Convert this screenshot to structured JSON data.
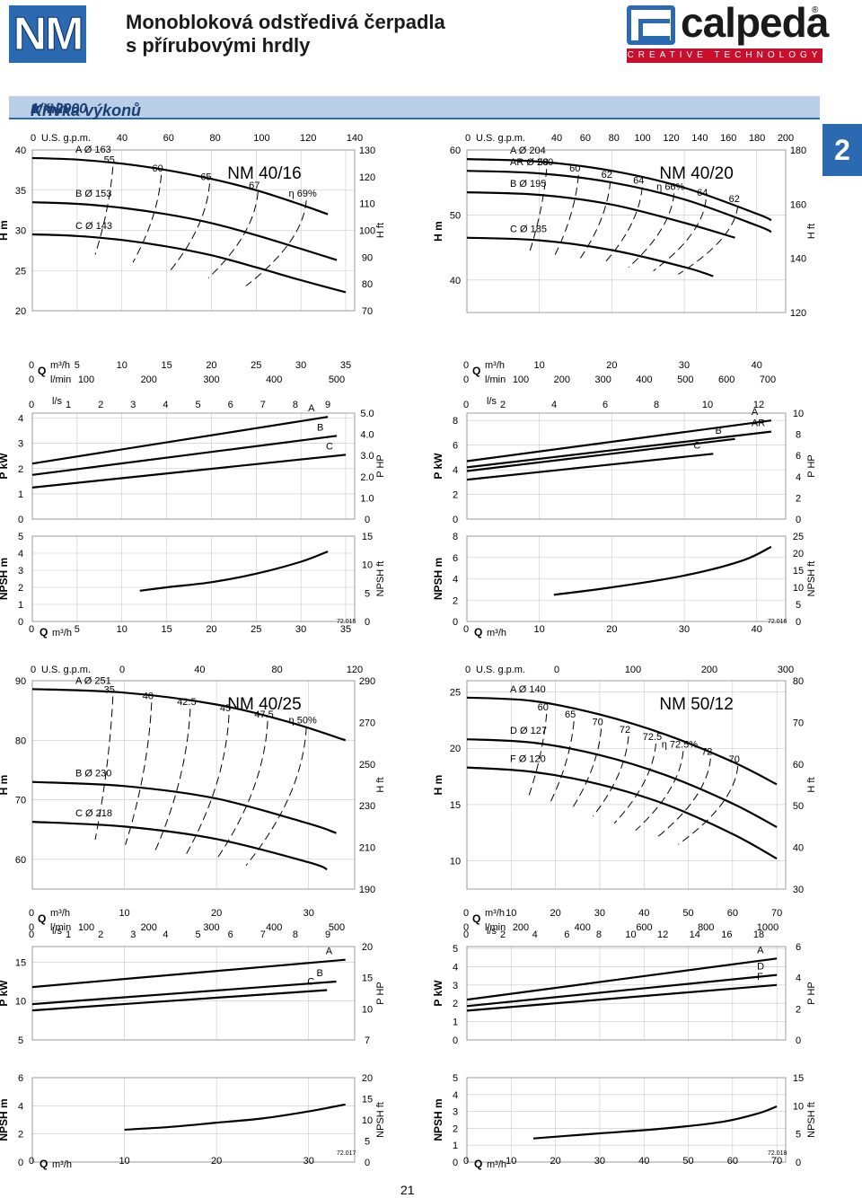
{
  "header": {
    "badge": "NM",
    "title_line1": "Monobloková odstředivá čerpadla",
    "title_line2": "s přírubovými hrdly",
    "logo_text": "calpeda",
    "logo_reg": "®",
    "logo_tagline": "CREATIVE TECHNOLOGY"
  },
  "section": {
    "title": "Křivka výkonů",
    "speed": "n ≈ 2900",
    "speed_unit": "1/min"
  },
  "side_tab": "2",
  "page_number": "21",
  "colors": {
    "brand_blue": "#2b69b0",
    "brand_red": "#c8102e",
    "section_bg": "#b9cfe7"
  },
  "chart_data": [
    {
      "type": "line",
      "title": "NM 40/16",
      "footnote": "72.015",
      "x_label": "Q m3/h",
      "flow_axes": {
        "m3h": {
          "ticks": [
            0,
            5,
            10,
            15,
            20,
            25,
            30,
            35
          ],
          "range": [
            0,
            36
          ]
        },
        "lmin": [
          0,
          100,
          200,
          300,
          400,
          500
        ],
        "ls": [
          0,
          1,
          2,
          3,
          4,
          5,
          6,
          7,
          8,
          9
        ],
        "usgpm": [
          40,
          60,
          80,
          100,
          120,
          140
        ]
      },
      "head": {
        "y_label": "H m",
        "y_ticks": [
          20,
          25,
          30,
          35,
          40
        ],
        "ylim": [
          20,
          40
        ],
        "y2_label": "H ft",
        "y2_ticks": [
          70,
          80,
          90,
          100,
          110,
          120,
          130
        ],
        "series": [
          {
            "name": "A Ø 163",
            "x": [
              0,
              5,
              10,
              15,
              20,
              25,
              30,
              33
            ],
            "y": [
              39,
              38.8,
              38.3,
              37.5,
              36.4,
              35,
              33.2,
              32
            ]
          },
          {
            "name": "B Ø 153",
            "x": [
              0,
              5,
              10,
              15,
              20,
              25,
              30,
              34
            ],
            "y": [
              33.5,
              33.3,
              32.8,
              32,
              30.9,
              29.4,
              27.7,
              26.3
            ]
          },
          {
            "name": "C Ø 143",
            "x": [
              0,
              5,
              10,
              15,
              20,
              25,
              30,
              35
            ],
            "y": [
              29.5,
              29.3,
              28.8,
              28,
              26.9,
              25.4,
              23.8,
              22.3
            ]
          }
        ],
        "efficiency_labels": [
          "55",
          "60",
          "65",
          "67",
          "η 69%"
        ]
      },
      "power": {
        "y_label": "P kW",
        "y_ticks": [
          0,
          1,
          2,
          3,
          4
        ],
        "ylim": [
          0,
          4.2
        ],
        "y2_label": "P HP",
        "y2_ticks": [
          "0",
          "1.0",
          "2.0",
          "3.0",
          "4.0",
          "5.0"
        ],
        "series": [
          {
            "name": "A",
            "x": [
              0,
              33
            ],
            "y": [
              2.2,
              4.05
            ]
          },
          {
            "name": "B",
            "x": [
              0,
              34
            ],
            "y": [
              1.75,
              3.3
            ]
          },
          {
            "name": "C",
            "x": [
              0,
              35
            ],
            "y": [
              1.25,
              2.55
            ]
          }
        ]
      },
      "npsh": {
        "y_label": "NPSH m",
        "y_ticks": [
          0,
          1,
          2,
          3,
          4,
          5
        ],
        "ylim": [
          0,
          5
        ],
        "y2_label": "NPSH ft",
        "y2_ticks": [
          0,
          5,
          10,
          15
        ],
        "series": [
          {
            "name": "NPSH",
            "x": [
              12,
              15,
              20,
              25,
              30,
              33
            ],
            "y": [
              1.8,
              2.0,
              2.3,
              2.8,
              3.5,
              4.1
            ]
          }
        ]
      }
    },
    {
      "type": "line",
      "title": "NM 40/20",
      "footnote": "72.016",
      "x_label": "Q m3/h",
      "flow_axes": {
        "m3h": {
          "ticks": [
            0,
            10,
            20,
            30,
            40
          ],
          "range": [
            0,
            44
          ]
        },
        "lmin": [
          0,
          100,
          200,
          300,
          400,
          500,
          600,
          700
        ],
        "ls": [
          0,
          2,
          4,
          6,
          8,
          10,
          12
        ],
        "usgpm": [
          40,
          60,
          80,
          100,
          120,
          140,
          160,
          180,
          200
        ]
      },
      "head": {
        "y_label": "H m",
        "y_ticks": [
          40,
          50,
          60
        ],
        "ylim": [
          35,
          60
        ],
        "y2_label": "H ft",
        "y2_ticks": [
          120,
          140,
          160,
          180
        ],
        "series": [
          {
            "name": "A Ø 204",
            "x": [
              0,
              10,
              20,
              30,
              40,
              42
            ],
            "y": [
              58.6,
              58.2,
              56.8,
              54.2,
              50.2,
              49.2
            ]
          },
          {
            "name": "AR Ø 200",
            "x": [
              0,
              10,
              20,
              30,
              40,
              42
            ],
            "y": [
              56.8,
              56.4,
              55,
              52.4,
              48.4,
              47.4
            ]
          },
          {
            "name": "B Ø 195",
            "x": [
              0,
              10,
              20,
              30,
              37
            ],
            "y": [
              53.5,
              53.1,
              51.6,
              48.8,
              46.5
            ]
          },
          {
            "name": "C Ø 185",
            "x": [
              0,
              10,
              20,
              30,
              34
            ],
            "y": [
              46.5,
              46.1,
              44.6,
              42,
              40.6
            ]
          }
        ],
        "efficiency_labels": [
          "58",
          "60",
          "62",
          "64",
          "η 66%",
          "64",
          "62"
        ]
      },
      "power": {
        "y_label": "P kW",
        "y_ticks": [
          0,
          2,
          4,
          6,
          8
        ],
        "ylim": [
          0,
          8.6
        ],
        "y2_label": "P HP",
        "y2_ticks": [
          0,
          2,
          4,
          6,
          8,
          10
        ],
        "series": [
          {
            "name": "A",
            "x": [
              0,
              42
            ],
            "y": [
              4.7,
              8.0
            ]
          },
          {
            "name": "AR",
            "x": [
              0,
              42
            ],
            "y": [
              4.2,
              7.1
            ]
          },
          {
            "name": "B",
            "x": [
              0,
              37
            ],
            "y": [
              3.9,
              6.5
            ]
          },
          {
            "name": "C",
            "x": [
              0,
              34
            ],
            "y": [
              3.2,
              5.3
            ]
          }
        ]
      },
      "npsh": {
        "y_label": "NPSH m",
        "y_ticks": [
          0,
          2,
          4,
          6,
          8
        ],
        "ylim": [
          0,
          8
        ],
        "y2_label": "NPSH ft",
        "y2_ticks": [
          0,
          5,
          10,
          15,
          20,
          25
        ],
        "series": [
          {
            "name": "NPSH",
            "x": [
              12,
              20,
              30,
              38,
              42
            ],
            "y": [
              2.5,
              3.2,
              4.3,
              5.7,
              7.0
            ]
          }
        ]
      }
    },
    {
      "type": "line",
      "title": "NM 40/25",
      "footnote": "72.017",
      "x_label": "Q m3/h",
      "flow_axes": {
        "m3h": {
          "ticks": [
            0,
            10,
            20,
            30
          ],
          "range": [
            0,
            35
          ]
        },
        "lmin": [
          0,
          100,
          200,
          300,
          400,
          500
        ],
        "ls": [
          0,
          1,
          2,
          3,
          4,
          5,
          6,
          7,
          8,
          9
        ],
        "usgpm": [
          0,
          40,
          80,
          120
        ]
      },
      "head": {
        "y_label": "H m",
        "y_ticks": [
          60,
          70,
          80,
          90
        ],
        "ylim": [
          55,
          90
        ],
        "y2_label": "H ft",
        "y2_ticks": [
          190,
          210,
          230,
          250,
          270,
          290
        ],
        "series": [
          {
            "name": "A Ø 251",
            "x": [
              0,
              10,
              20,
              28,
              34
            ],
            "y": [
              88.6,
              88,
              86,
              83,
              80
            ]
          },
          {
            "name": "B Ø 230",
            "x": [
              0,
              10,
              20,
              30,
              33
            ],
            "y": [
              73,
              72.3,
              70.2,
              66,
              64.4
            ]
          },
          {
            "name": "C Ø 218",
            "x": [
              0,
              10,
              20,
              30,
              32
            ],
            "y": [
              66.3,
              65.5,
              63.4,
              59.5,
              58.3
            ]
          }
        ],
        "efficiency_labels": [
          "35",
          "40",
          "42.5",
          "45",
          "47.5",
          "η 50%"
        ]
      },
      "power": {
        "y_label": "P kW",
        "y_ticks": [
          5,
          10,
          15
        ],
        "ylim": [
          5,
          17
        ],
        "y2_label": "P HP",
        "y2_ticks": [
          7,
          10,
          15,
          20
        ],
        "series": [
          {
            "name": "A",
            "x": [
              0,
              34
            ],
            "y": [
              11.8,
              15.3
            ]
          },
          {
            "name": "B",
            "x": [
              0,
              33
            ],
            "y": [
              9.6,
              12.5
            ]
          },
          {
            "name": "C",
            "x": [
              0,
              32
            ],
            "y": [
              8.8,
              11.4
            ]
          }
        ]
      },
      "npsh": {
        "y_label": "NPSH m",
        "y_ticks": [
          0,
          2,
          4,
          6
        ],
        "ylim": [
          0,
          6
        ],
        "y2_label": "NPSH ft",
        "y2_ticks": [
          0,
          5,
          10,
          15,
          20
        ],
        "series": [
          {
            "name": "NPSH",
            "x": [
              10,
              15,
              20,
              25,
              30,
              34
            ],
            "y": [
              2.3,
              2.5,
              2.8,
              3.1,
              3.6,
              4.1
            ]
          }
        ]
      }
    },
    {
      "type": "line",
      "title": "NM 50/12",
      "footnote": "72.018",
      "x_label": "Q m3/h",
      "flow_axes": {
        "m3h": {
          "ticks": [
            0,
            10,
            20,
            30,
            40,
            50,
            60,
            70
          ],
          "range": [
            0,
            72
          ]
        },
        "lmin": [
          0,
          200,
          400,
          600,
          800,
          1000
        ],
        "ls": [
          0,
          2,
          4,
          6,
          8,
          10,
          12,
          14,
          16,
          18
        ],
        "usgpm": [
          0,
          100,
          200,
          300
        ]
      },
      "head": {
        "y_label": "H m",
        "y_ticks": [
          10,
          15,
          20,
          25
        ],
        "ylim": [
          7.5,
          26
        ],
        "y2_label": "H ft",
        "y2_ticks": [
          30,
          40,
          50,
          60,
          70,
          80
        ],
        "series": [
          {
            "name": "A Ø 140",
            "x": [
              0,
              15,
              30,
              45,
              60,
              70
            ],
            "y": [
              24.5,
              24.2,
              23,
              21.2,
              18.8,
              16.8
            ]
          },
          {
            "name": "D Ø 127",
            "x": [
              0,
              15,
              30,
              45,
              60,
              70
            ],
            "y": [
              20.8,
              20.5,
              19.4,
              17.6,
              15.1,
              13
            ]
          },
          {
            "name": "F Ø 120",
            "x": [
              0,
              15,
              30,
              45,
              60,
              70
            ],
            "y": [
              18.3,
              17.9,
              16.8,
              15,
              12.4,
              10.2
            ]
          }
        ],
        "efficiency_labels": [
          "60",
          "65",
          "70",
          "72",
          "72.5",
          "η 72.5%",
          "72",
          "70"
        ]
      },
      "power": {
        "y_label": "P kW",
        "y_ticks": [
          0,
          1,
          2,
          3,
          4,
          5
        ],
        "ylim": [
          0,
          5.1
        ],
        "y2_label": "P HP",
        "y2_ticks": [
          0,
          2,
          4,
          6
        ],
        "series": [
          {
            "name": "A",
            "x": [
              0,
              70
            ],
            "y": [
              2.2,
              4.45
            ]
          },
          {
            "name": "D",
            "x": [
              0,
              70
            ],
            "y": [
              1.85,
              3.55
            ]
          },
          {
            "name": "F",
            "x": [
              0,
              70
            ],
            "y": [
              1.6,
              3.0
            ]
          }
        ]
      },
      "npsh": {
        "y_label": "NPSH m",
        "y_ticks": [
          0,
          1,
          2,
          3,
          4,
          5
        ],
        "ylim": [
          0,
          5
        ],
        "y2_label": "NPSH ft",
        "y2_ticks": [
          0,
          5,
          10,
          15
        ],
        "series": [
          {
            "name": "NPSH",
            "x": [
              15,
              30,
              45,
              58,
              66,
              70
            ],
            "y": [
              1.4,
              1.7,
              2.0,
              2.4,
              2.9,
              3.3
            ]
          }
        ]
      }
    }
  ]
}
